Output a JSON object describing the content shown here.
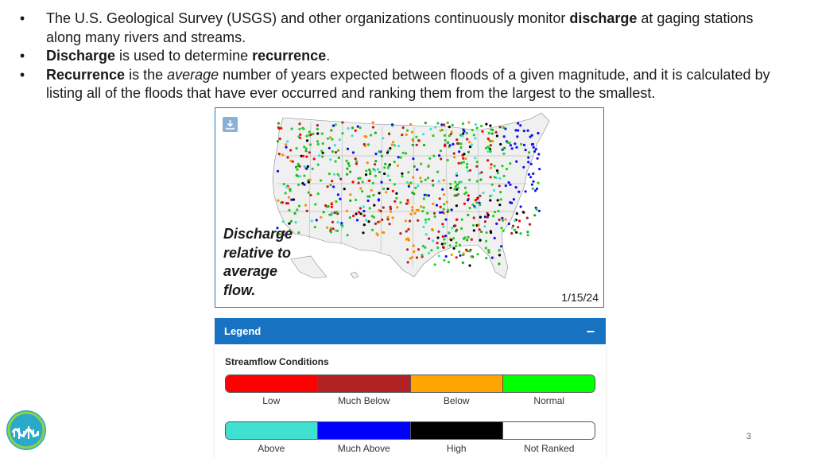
{
  "bullets": [
    {
      "marker": "•",
      "parts": [
        {
          "text": "The U.S. Geological Survey (USGS) and other organizations continuously monitor ",
          "style": "normal"
        },
        {
          "text": "discharge",
          "style": "bold"
        },
        {
          "text": " at gaging stations along many rivers and streams.",
          "style": "normal"
        }
      ]
    },
    {
      "marker": "•",
      "parts": [
        {
          "text": "Discharge",
          "style": "bold"
        },
        {
          "text": " is used to determine ",
          "style": "normal"
        },
        {
          "text": "recurrence",
          "style": "bold"
        },
        {
          "text": ".",
          "style": "normal"
        }
      ]
    },
    {
      "marker": "•",
      "parts": [
        {
          "text": "Recurrence",
          "style": "bold"
        },
        {
          "text": " is the ",
          "style": "normal"
        },
        {
          "text": "average",
          "style": "italic"
        },
        {
          "text": " number of years expected between floods of a given magnitude, and it is calculated by listing all of the floods that have ever occurred and ranking them from the largest to the smallest.",
          "style": "normal"
        }
      ]
    }
  ],
  "map": {
    "caption": "Discharge relative to average flow.",
    "date": "1/15/24",
    "download_icon": "download-icon"
  },
  "legend": {
    "header": "Legend",
    "collapse_symbol": "−",
    "subtitle": "Streamflow Conditions",
    "row1": [
      {
        "label": "Low",
        "color": "#ff0000"
      },
      {
        "label": "Much Below",
        "color": "#b22222"
      },
      {
        "label": "Below",
        "color": "#ffa500"
      },
      {
        "label": "Normal",
        "color": "#00ff00"
      }
    ],
    "row2": [
      {
        "label": "Above",
        "color": "#40e0d0"
      },
      {
        "label": "Much Above",
        "color": "#0000ff"
      },
      {
        "label": "High",
        "color": "#000000"
      },
      {
        "label": "Not Ranked",
        "color": "#ffffff"
      }
    ]
  },
  "page_number": "3",
  "logo_icon": "wave-logo-icon"
}
